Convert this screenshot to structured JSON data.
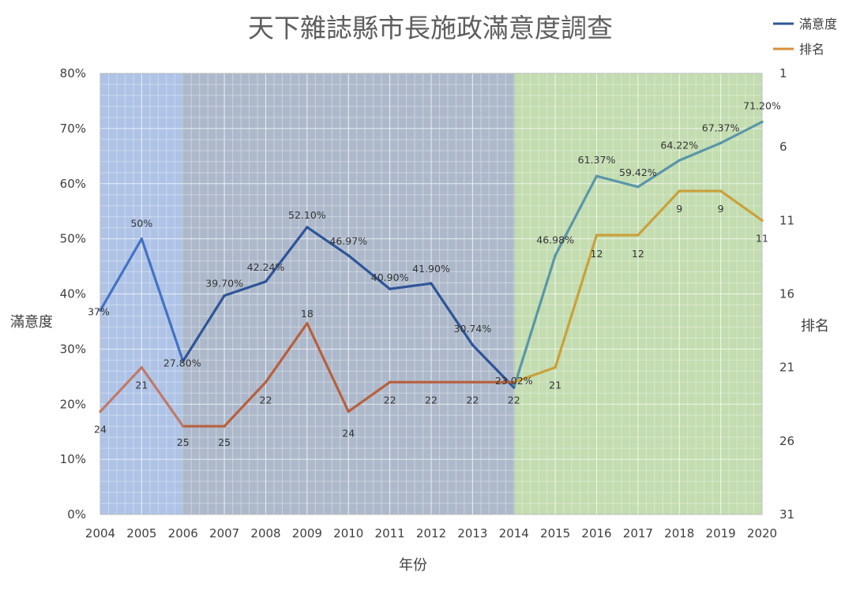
{
  "chart_data": {
    "type": "line",
    "title": "天下雜誌縣市長施政滿意度調查",
    "xlabel": "年份",
    "ylabel": "滿意度",
    "y2label": "排名",
    "x": [
      "2004",
      "2005",
      "2006",
      "2007",
      "2008",
      "2009",
      "2010",
      "2011",
      "2012",
      "2013",
      "2014",
      "2015",
      "2016",
      "2017",
      "2018",
      "2019",
      "2020"
    ],
    "ylim": [
      0,
      80
    ],
    "y_ticks": [
      "0%",
      "10%",
      "20%",
      "30%",
      "40%",
      "50%",
      "60%",
      "70%",
      "80%"
    ],
    "y2lim": [
      1,
      31
    ],
    "y2_inverted": true,
    "y2_ticks": [
      "1",
      "6",
      "11",
      "16",
      "21",
      "26",
      "31"
    ],
    "grid": true,
    "legend_position": "top-right",
    "series": [
      {
        "name": "滿意度",
        "axis": "left",
        "unit": "%",
        "values": [
          37,
          50,
          27.8,
          39.7,
          42.24,
          52.1,
          46.97,
          40.9,
          41.9,
          30.74,
          23.02,
          46.98,
          61.37,
          59.42,
          64.22,
          67.37,
          71.2
        ],
        "labels": [
          "37%",
          "50%",
          "27.80%",
          "39.70%",
          "42.24%",
          "52.10%",
          "46.97%",
          "40.90%",
          "41.90%",
          "30.74%",
          "23.02%",
          "46.98%",
          "61.37%",
          "59.42%",
          "64.22%",
          "67.37%",
          "71.20%"
        ]
      },
      {
        "name": "排名",
        "axis": "right",
        "values": [
          24,
          21,
          25,
          25,
          22,
          18,
          24,
          22,
          22,
          22,
          22,
          21,
          12,
          12,
          9,
          9,
          11
        ],
        "labels": [
          "24",
          "21",
          "25",
          "25",
          "22",
          "18",
          "24",
          "22",
          "22",
          "22",
          "22",
          "21",
          "12",
          "12",
          "9",
          "9",
          "11"
        ]
      }
    ],
    "shaded_periods": [
      {
        "from": "2004",
        "to": "2006",
        "color": "#aec3e6"
      },
      {
        "from": "2006",
        "to": "2014",
        "color": "#adb9cb"
      },
      {
        "from": "2014",
        "to": "2020",
        "color": "#c3dcb0"
      }
    ],
    "colors": {
      "satisfaction": [
        "#4472c4",
        "#2f5597",
        "#5a96a8"
      ],
      "rank": [
        "#c07a6a",
        "#b8603e",
        "#c9a13a"
      ],
      "legend_satisfaction": "#2f5597",
      "legend_rank": "#d88c39"
    }
  }
}
